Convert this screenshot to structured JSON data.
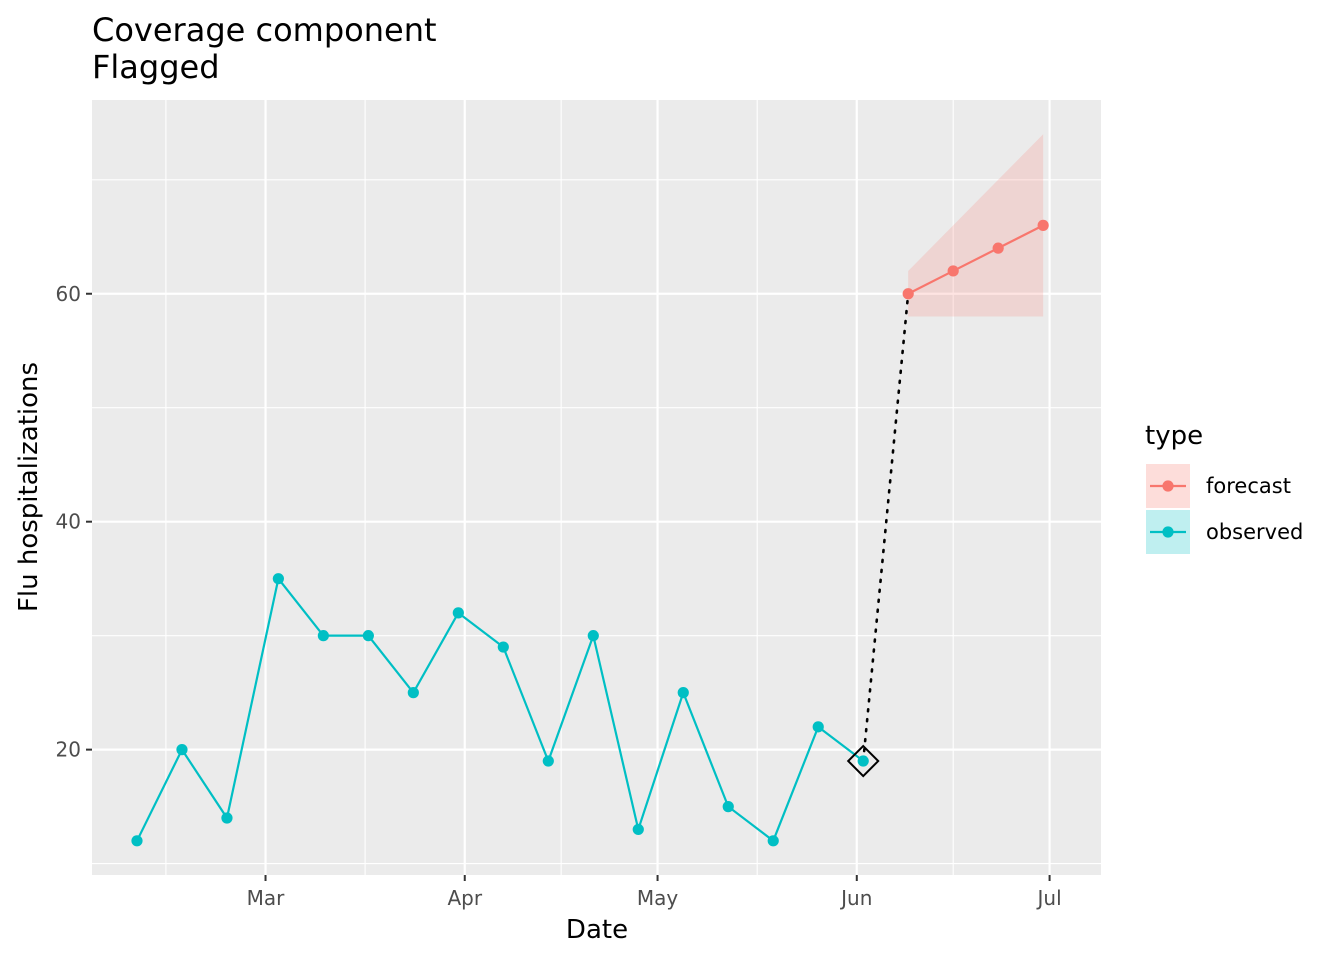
{
  "chart_data": {
    "type": "line",
    "title": "Coverage component",
    "subtitle": "Flagged",
    "xlabel": "Date",
    "ylabel": "Flu hospitalizations",
    "x_tick_labels": [
      {
        "date": "2024-03-01",
        "label": "Mar"
      },
      {
        "date": "2024-04-01",
        "label": "Apr"
      },
      {
        "date": "2024-05-01",
        "label": "May"
      },
      {
        "date": "2024-06-01",
        "label": "Jun"
      },
      {
        "date": "2024-07-01",
        "label": "Jul"
      }
    ],
    "y_ticks": [
      20,
      40,
      60
    ],
    "xlim": [
      "2024-02-03",
      "2024-07-09"
    ],
    "ylim": [
      9,
      77
    ],
    "grid": true,
    "legend": {
      "title": "type",
      "position": "right",
      "entries": [
        "forecast",
        "observed"
      ]
    },
    "colors": {
      "observed": "#00BFC4",
      "forecast": "#F8766D",
      "ribbon": "#F8766D",
      "panel": "#EBEBEB",
      "grid": "#FFFFFF"
    },
    "series": [
      {
        "name": "observed",
        "x": [
          "2024-02-10",
          "2024-02-17",
          "2024-02-24",
          "2024-03-03",
          "2024-03-10",
          "2024-03-17",
          "2024-03-24",
          "2024-03-31",
          "2024-04-07",
          "2024-04-14",
          "2024-04-21",
          "2024-04-28",
          "2024-05-05",
          "2024-05-12",
          "2024-05-19",
          "2024-05-26",
          "2024-06-02"
        ],
        "y": [
          12,
          20,
          14,
          35,
          30,
          30,
          25,
          32,
          29,
          19,
          30,
          13,
          25,
          15,
          12,
          22,
          19
        ]
      },
      {
        "name": "forecast",
        "x": [
          "2024-06-09",
          "2024-06-16",
          "2024-06-23",
          "2024-06-30"
        ],
        "y": [
          60,
          62,
          64,
          66
        ],
        "lower": [
          58,
          58,
          58,
          58
        ],
        "upper": [
          62,
          66,
          70,
          74
        ]
      }
    ],
    "connector": {
      "style": "dotted",
      "from": {
        "x": "2024-06-02",
        "y": 19
      },
      "to": {
        "x": "2024-06-09",
        "y": 60
      }
    },
    "flagged_point": {
      "x": "2024-06-02",
      "y": 19,
      "marker": "diamond-outline"
    }
  }
}
